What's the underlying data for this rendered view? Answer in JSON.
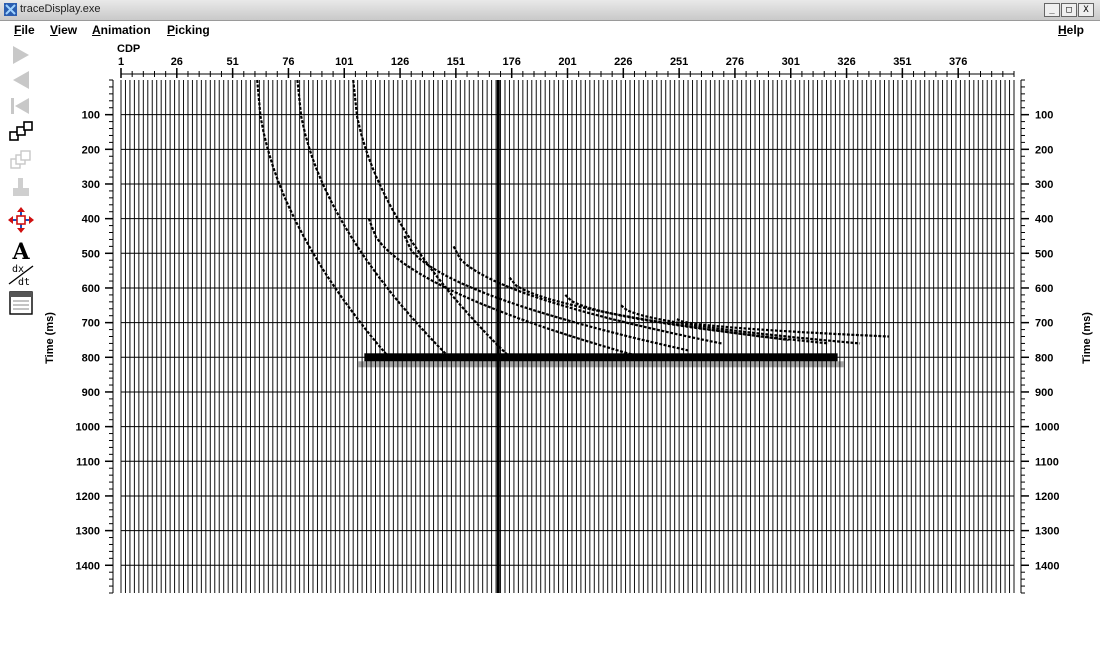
{
  "window": {
    "title": "traceDisplay.exe",
    "controls": [
      "_",
      "□",
      "X"
    ]
  },
  "menubar": {
    "file": {
      "acc": "F",
      "rest": "ile"
    },
    "view": {
      "acc": "V",
      "rest": "iew"
    },
    "animation": {
      "acc": "A",
      "rest": "nimation"
    },
    "picking": {
      "acc": "P",
      "rest": "icking"
    },
    "help": {
      "acc": "H",
      "rest": "elp"
    }
  },
  "toolbar": {
    "tools": [
      {
        "name": "play-forward-icon",
        "enabled": false
      },
      {
        "name": "play-backward-icon",
        "enabled": false
      },
      {
        "name": "rewind-to-start-icon",
        "enabled": false
      },
      {
        "name": "multi-window-icon",
        "enabled": true
      },
      {
        "name": "stacked-windows-icon",
        "enabled": false
      },
      {
        "name": "save-icon",
        "enabled": false
      },
      {
        "name": "move-arrows-icon",
        "enabled": true
      },
      {
        "name": "annotate-text-icon",
        "enabled": true,
        "glyph": "A"
      },
      {
        "name": "derivative-icon",
        "enabled": true,
        "glyph_top": "dx",
        "glyph_bottom": "dt"
      },
      {
        "name": "window-panel-icon",
        "enabled": true
      }
    ]
  },
  "chart_data": {
    "type": "seismic_section",
    "xlabel": "CDP",
    "ylabel": "Time (ms)",
    "x_ticks": [
      1,
      26,
      51,
      76,
      101,
      126,
      151,
      176,
      201,
      226,
      251,
      276,
      301,
      326,
      351,
      376
    ],
    "y_ticks": [
      100,
      200,
      300,
      400,
      500,
      600,
      700,
      800,
      900,
      1000,
      1100,
      1200,
      1300,
      1400
    ],
    "xlim": [
      1,
      401
    ],
    "ylim": [
      0,
      1480
    ],
    "trace_spacing_cdp": 2,
    "highlight_trace_cdp": 170,
    "grid": true,
    "reflector": {
      "time_ms": 800,
      "cdp_start": 110,
      "cdp_end": 322
    },
    "diffraction_events": [
      {
        "apex_cdp": 62,
        "end_cdp": 121,
        "t_start_ms": 0,
        "t_end_ms": 800
      },
      {
        "apex_cdp": 80,
        "end_cdp": 148,
        "t_start_ms": 0,
        "t_end_ms": 800
      },
      {
        "apex_cdp": 105,
        "end_cdp": 176,
        "t_start_ms": 0,
        "t_end_ms": 805
      },
      {
        "apex_cdp": 112,
        "end_cdp": 240,
        "t_start_ms": 400,
        "t_end_ms": 810
      },
      {
        "apex_cdp": 128,
        "end_cdp": 255,
        "t_start_ms": 450,
        "t_end_ms": 780
      },
      {
        "apex_cdp": 150,
        "end_cdp": 270,
        "t_start_ms": 480,
        "t_end_ms": 760
      },
      {
        "apex_cdp": 175,
        "end_cdp": 300,
        "t_start_ms": 570,
        "t_end_ms": 750
      },
      {
        "apex_cdp": 200,
        "end_cdp": 318,
        "t_start_ms": 620,
        "t_end_ms": 760
      },
      {
        "apex_cdp": 225,
        "end_cdp": 332,
        "t_start_ms": 650,
        "t_end_ms": 760
      },
      {
        "apex_cdp": 250,
        "end_cdp": 345,
        "t_start_ms": 690,
        "t_end_ms": 740
      }
    ]
  }
}
